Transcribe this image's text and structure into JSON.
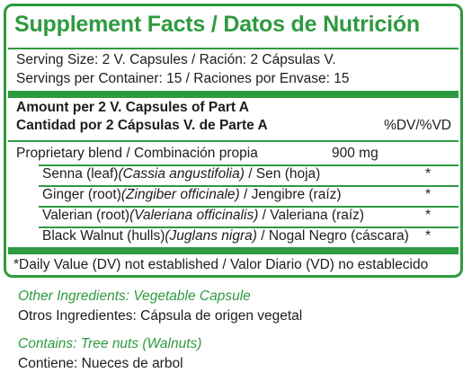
{
  "facts": {
    "title": "Supplement Facts / Datos de Nutrición",
    "serving_size": "Serving Size: 2 V. Capsules / Ración: 2 Cápsulas V.",
    "servings_per_container": "Servings per Container: 15 / Raciones por Envase: 15",
    "amount_en": "Amount per 2 V. Capsules of Part A",
    "amount_es": "Cantidad por 2 Cápsulas V. de Parte A",
    "dv_header": "%DV/%VD",
    "blend_label": "Proprietary blend / Combinación propia",
    "blend_amount": "900 mg",
    "ingredients": [
      {
        "common": "Senna (leaf)",
        "latin": "(Cassia angustifolia)",
        "spanish": " / Sen (hoja)",
        "dv": "*"
      },
      {
        "common": "Ginger (root)",
        "latin": "(Zingiber officinale)",
        "spanish": " / Jengibre (raíz)",
        "dv": "*"
      },
      {
        "common": "Valerian (root)",
        "latin": "(Valeriana officinalis)",
        "spanish": " / Valeriana (raíz)",
        "dv": "*"
      },
      {
        "common": "Black Walnut (hulls)",
        "latin": "(Juglans nigra)",
        "spanish": " / Nogal Negro (cáscara)",
        "dv": "*"
      }
    ],
    "footnote": "*Daily Value (DV) not established / Valor Diario (VD) no establecido"
  },
  "other": {
    "other_en": "Other Ingredients: Vegetable Capsule",
    "other_es": "Otros Ingredientes: Cápsula de origen vegetal",
    "contains_en": "Contains: Tree nuts (Walnuts)",
    "contains_es": "Contiene: Nueces de arbol"
  },
  "colors": {
    "accent": "#2e9a3f",
    "text": "#1d1d1b"
  }
}
